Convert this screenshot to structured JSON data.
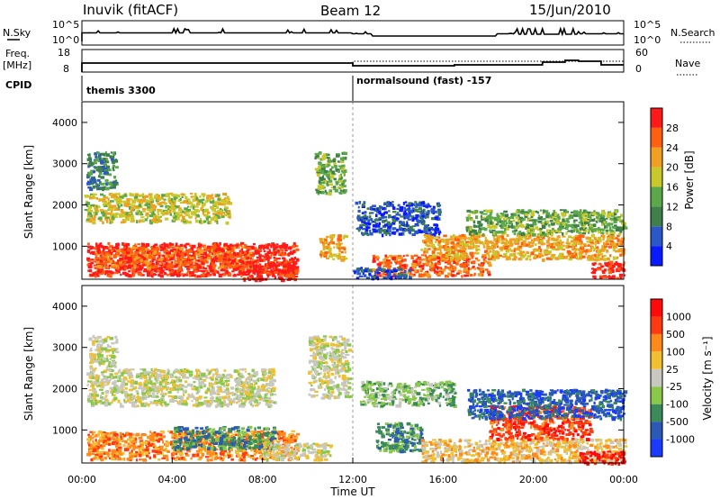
{
  "header": {
    "station": "Inuvik (fitACF)",
    "beam": "Beam 12",
    "date": "15/Jun/2010"
  },
  "param_panels": {
    "nsky_label": "N.Sky",
    "nsky_ticks": [
      "10^5",
      "10^0"
    ],
    "nsearch_label": "N.Search",
    "nsearch_ticks": [
      "10^5",
      "10^0"
    ],
    "freq_label": "Freq.",
    "freq_unit": "[MHz]",
    "freq_ticks": [
      "18",
      "8"
    ],
    "nave_label": "Nave",
    "nave_ticks": [
      "60",
      "0"
    ],
    "cpid_label": "CPID",
    "cpid_modes": [
      {
        "name": "themis 3300",
        "start_hour": 0
      },
      {
        "name": "normalsound (fast) -157",
        "start_hour": 12
      }
    ]
  },
  "time_axis": {
    "label": "Time UT",
    "ticks": [
      "00:00",
      "04:00",
      "08:00",
      "12:00",
      "16:00",
      "20:00",
      "00:00"
    ]
  },
  "chart_data": [
    {
      "type": "heatmap",
      "panel": "power",
      "ylabel": "Slant Range [km]",
      "y_ticks": [
        "1000",
        "2000",
        "3000",
        "4000"
      ],
      "ylim": [
        200,
        4500
      ],
      "xlim_hours": [
        0,
        24
      ],
      "colorbar_label": "Power [dB]",
      "colorbar_ticks": [
        "4",
        "8",
        "12",
        "16",
        "20",
        "24",
        "28"
      ],
      "colorbar_colors": [
        "#0a1aff",
        "#2a58c8",
        "#3f7f4a",
        "#5aa84a",
        "#c8c82a",
        "#f0a020",
        "#ff6010",
        "#ff1a1a"
      ],
      "clusters": [
        {
          "x": [
            0.2,
            9.5
          ],
          "y": [
            300,
            1100
          ],
          "level": 7
        },
        {
          "x": [
            0.5,
            7.5
          ],
          "y": [
            500,
            1000
          ],
          "level": 6
        },
        {
          "x": [
            0.1,
            6.5
          ],
          "y": [
            1600,
            2300
          ],
          "level": 4
        },
        {
          "x": [
            0.2,
            1.5
          ],
          "y": [
            2400,
            3300
          ],
          "level": 2
        },
        {
          "x": [
            7.0,
            9.5
          ],
          "y": [
            200,
            650
          ],
          "level": 7
        },
        {
          "x": [
            10.5,
            11.7
          ],
          "y": [
            700,
            1300
          ],
          "level": 5
        },
        {
          "x": [
            10.3,
            11.6
          ],
          "y": [
            2300,
            3300
          ],
          "level": 3
        },
        {
          "x": [
            12.1,
            15.8
          ],
          "y": [
            1300,
            2100
          ],
          "level": 1
        },
        {
          "x": [
            12.8,
            18.0
          ],
          "y": [
            300,
            800
          ],
          "level": 6
        },
        {
          "x": [
            15.0,
            24.0
          ],
          "y": [
            700,
            1300
          ],
          "level": 5
        },
        {
          "x": [
            17.0,
            24.0
          ],
          "y": [
            1300,
            1900
          ],
          "level": 3
        },
        {
          "x": [
            22.5,
            24.0
          ],
          "y": [
            250,
            650
          ],
          "level": 7
        },
        {
          "x": [
            12.0,
            14.5
          ],
          "y": [
            250,
            500
          ],
          "level": 1
        }
      ]
    },
    {
      "type": "heatmap",
      "panel": "velocity",
      "ylabel": "Slant Range [km]",
      "y_ticks": [
        "1000",
        "2000",
        "3000",
        "4000"
      ],
      "ylim": [
        200,
        4500
      ],
      "xlim_hours": [
        0,
        24
      ],
      "colorbar_label": "Velocity [m s⁻¹]",
      "colorbar_ticks": [
        "1000",
        "500",
        "100",
        "25",
        "-25",
        "-100",
        "-500",
        "-1000"
      ],
      "colorbar_colors": [
        "#1a3aff",
        "#2a5ab4",
        "#3a8a5a",
        "#8ac84a",
        "#c8c8c0",
        "#f0c030",
        "#ff8a1a",
        "#ff3a10",
        "#ff0a0a"
      ],
      "clusters": [
        {
          "x": [
            0.2,
            9.5
          ],
          "y": [
            300,
            1000
          ],
          "level": 6
        },
        {
          "x": [
            0.2,
            8.5
          ],
          "y": [
            1600,
            2500
          ],
          "level": 4
        },
        {
          "x": [
            0.3,
            1.5
          ],
          "y": [
            2500,
            3300
          ],
          "level": 4
        },
        {
          "x": [
            4.0,
            8.5
          ],
          "y": [
            550,
            1100
          ],
          "level": 2
        },
        {
          "x": [
            8.0,
            11.0
          ],
          "y": [
            300,
            700
          ],
          "level": 4
        },
        {
          "x": [
            10.0,
            11.8
          ],
          "y": [
            1800,
            3300
          ],
          "level": 4
        },
        {
          "x": [
            12.3,
            16.5
          ],
          "y": [
            1600,
            2200
          ],
          "level": 3
        },
        {
          "x": [
            13.0,
            15.0
          ],
          "y": [
            500,
            1200
          ],
          "level": 2
        },
        {
          "x": [
            15.0,
            24.0
          ],
          "y": [
            250,
            800
          ],
          "level": 5
        },
        {
          "x": [
            18.0,
            22.5
          ],
          "y": [
            800,
            1600
          ],
          "level": 7
        },
        {
          "x": [
            17.0,
            24.0
          ],
          "y": [
            1300,
            2000
          ],
          "level": 1
        },
        {
          "x": [
            22.0,
            24.0
          ],
          "y": [
            200,
            500
          ],
          "level": 8
        }
      ]
    }
  ]
}
